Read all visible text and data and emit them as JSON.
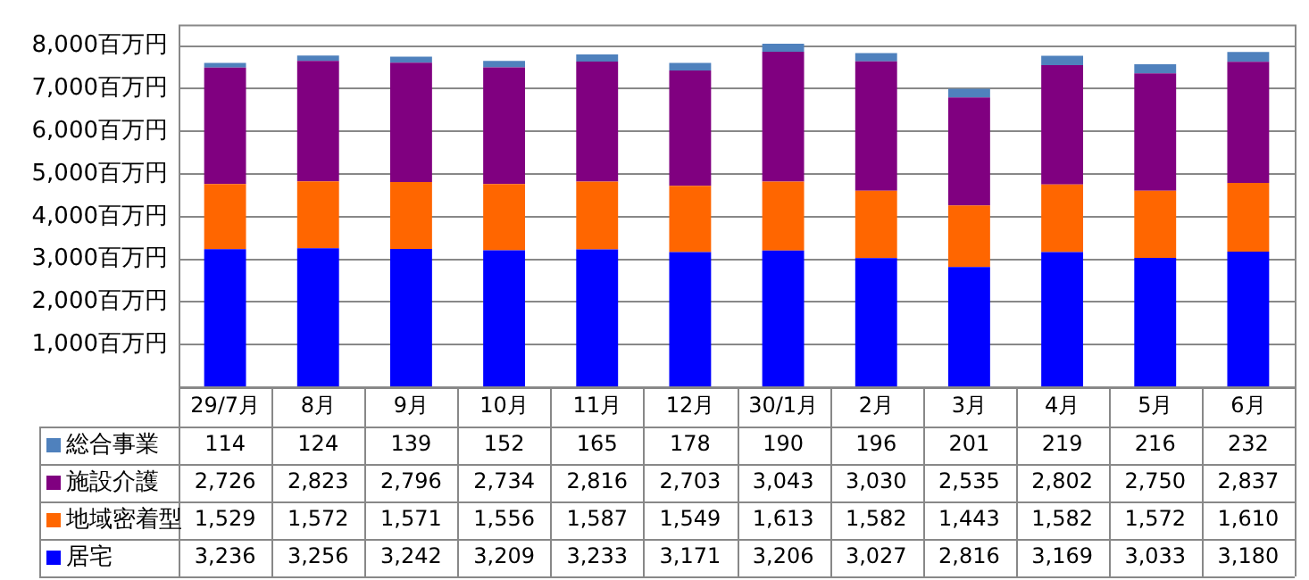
{
  "chart_data": {
    "type": "bar",
    "stacked": true,
    "categories": [
      "29/7月",
      "8月",
      "9月",
      "10月",
      "11月",
      "12月",
      "30/1月",
      "2月",
      "3月",
      "4月",
      "5月",
      "6月"
    ],
    "series": [
      {
        "name": "居宅",
        "color": "#0000ff",
        "values": [
          3236,
          3256,
          3242,
          3209,
          3233,
          3171,
          3206,
          3027,
          2816,
          3169,
          3033,
          3180
        ],
        "value_labels": [
          "3,236",
          "3,256",
          "3,242",
          "3,209",
          "3,233",
          "3,171",
          "3,206",
          "3,027",
          "2,816",
          "3,169",
          "3,033",
          "3,180"
        ]
      },
      {
        "name": "地域密着型",
        "color": "#ff6600",
        "values": [
          1529,
          1572,
          1571,
          1556,
          1587,
          1549,
          1613,
          1582,
          1443,
          1582,
          1572,
          1610
        ],
        "value_labels": [
          "1,529",
          "1,572",
          "1,571",
          "1,556",
          "1,587",
          "1,549",
          "1,613",
          "1,582",
          "1,443",
          "1,582",
          "1,572",
          "1,610"
        ]
      },
      {
        "name": "施設介護",
        "color": "#800080",
        "values": [
          2726,
          2823,
          2796,
          2734,
          2816,
          2703,
          3043,
          3030,
          2535,
          2802,
          2750,
          2837
        ],
        "value_labels": [
          "2,726",
          "2,823",
          "2,796",
          "2,734",
          "2,816",
          "2,703",
          "3,043",
          "3,030",
          "2,535",
          "2,802",
          "2,750",
          "2,837"
        ]
      },
      {
        "name": "総合事業",
        "color": "#4f81bd",
        "values": [
          114,
          124,
          139,
          152,
          165,
          178,
          190,
          196,
          201,
          219,
          216,
          232
        ],
        "value_labels": [
          "114",
          "124",
          "139",
          "152",
          "165",
          "178",
          "190",
          "196",
          "201",
          "219",
          "216",
          "232"
        ]
      }
    ],
    "ylim": [
      0,
      8500
    ],
    "yticks": [
      {
        "value": 0,
        "label": null
      },
      {
        "value": 1000,
        "label": "1,000百万円"
      },
      {
        "value": 2000,
        "label": "2,000百万円"
      },
      {
        "value": 3000,
        "label": "3,000百万円"
      },
      {
        "value": 4000,
        "label": "4,000百万円"
      },
      {
        "value": 5000,
        "label": "5,000百万円"
      },
      {
        "value": 6000,
        "label": "6,000百万円"
      },
      {
        "value": 7000,
        "label": "7,000百万円"
      },
      {
        "value": 8000,
        "label": "8,000百万円"
      }
    ],
    "grid": "y",
    "legend": "bottom"
  }
}
